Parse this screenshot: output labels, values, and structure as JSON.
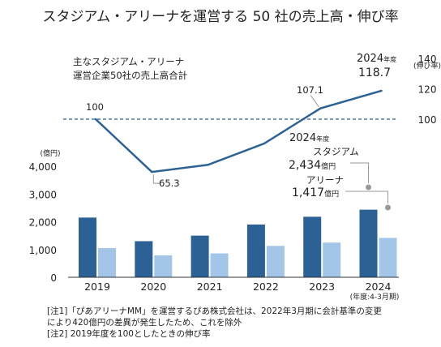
{
  "chart_data": {
    "type": "bar",
    "title": "スタジアム・アリーナを運営する 50 社の売上高・伸び率",
    "subtitle": [
      "主なスタジアム・アリーナ",
      "運営企業50社の売上高合計"
    ],
    "categories": [
      "2019",
      "2020",
      "2021",
      "2022",
      "2023",
      "2024"
    ],
    "x_sublabel_2024": "(年度:4-3月期)",
    "left_axis": {
      "unit": "(億円)",
      "ylim": [
        0,
        4000
      ],
      "ticks": [
        0,
        1000,
        2000,
        3000,
        4000
      ],
      "tick_labels": [
        "0",
        "1,000",
        "2,000",
        "3,000",
        "4,000"
      ]
    },
    "right_axis": {
      "unit": "(伸び率)",
      "ticks": [
        100,
        120,
        140
      ],
      "tick_labels": [
        "100",
        "120",
        "140"
      ]
    },
    "series": [
      {
        "name": "スタジアム",
        "type": "bar",
        "color": "#2b6195",
        "values": [
          2150,
          1300,
          1500,
          1900,
          2180,
          2434
        ]
      },
      {
        "name": "アリーナ",
        "type": "bar",
        "color": "#a3c6e8",
        "values": [
          1050,
          790,
          860,
          1130,
          1250,
          1417
        ]
      },
      {
        "name": "伸び率",
        "type": "line",
        "color": "#2b6195",
        "values": [
          100,
          65.3,
          70,
          84,
          107.1,
          118.7
        ]
      }
    ],
    "reference_line": {
      "value": 100,
      "style": "dashed"
    },
    "data_labels": [
      {
        "text": "100",
        "index": 0
      },
      {
        "text": "65.3",
        "index": 1
      },
      {
        "text": "107.1",
        "index": 4
      }
    ],
    "annotation_2024": {
      "year": "2024",
      "year_suffix": "年度",
      "growth_value": "118.7",
      "stadium_label": "スタジアム",
      "stadium_value": "2,434",
      "stadium_unit": "億円",
      "arena_label": "アリーナ",
      "arena_value": "1,417",
      "arena_unit": "億円"
    },
    "notes": [
      "[注1]「ぴあアリーナMM」を運営するぴあ株式会社は、2022年3月期に会計基準の変更",
      "により420億円の差異が発生したため、これを除外",
      "[注2] 2019年度を100としたときの伸び率"
    ]
  }
}
